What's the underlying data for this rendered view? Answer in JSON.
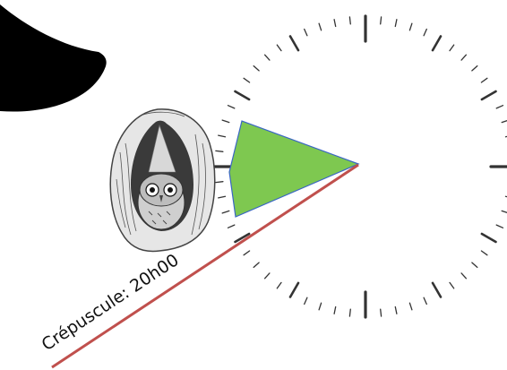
{
  "annotations": {
    "dusk_label": "Crépuscule: 20h00"
  },
  "icons": {
    "crescent": "crescent-moon-icon",
    "owl": "owl-in-tree-hollow-icon",
    "clock": "clock-face-icon"
  },
  "colors": {
    "moon": "#000000",
    "sector_fill": "#7ec850",
    "sector_stroke": "#3a66c4",
    "dusk_line": "#c0504d",
    "clock_ticks": "#333333"
  }
}
